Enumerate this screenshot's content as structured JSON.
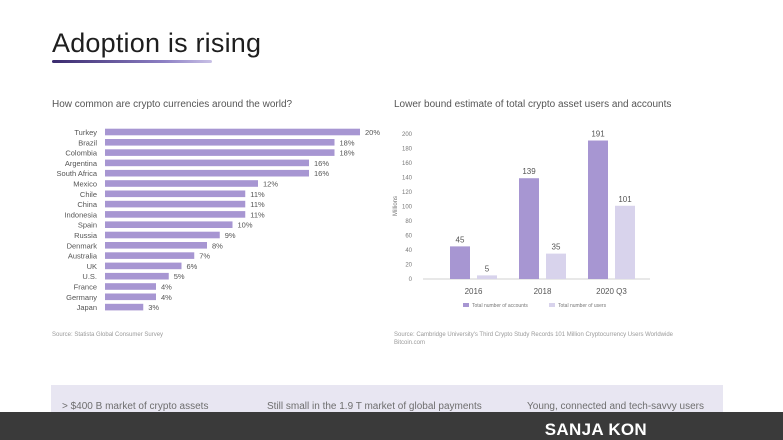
{
  "slide": {
    "title": "Adoption is rising",
    "left_chart_title": "How common are crypto currencies around the world?",
    "right_chart_title": "Lower bound estimate of total crypto asset users and accounts",
    "left_source": "Source: Statista Global Consumer Survey",
    "right_source_line1": "Source: Cambridge University's Third Crypto Study Records 101 Million Cryptocurrency Users Worldwide",
    "right_source_line2": "Bitcoin.com",
    "footer": [
      "> $400 B market of crypto assets",
      "Still small in the 1.9 T market of global payments",
      "Young, connected and tech-savvy users"
    ],
    "watermark": "SANJA KON",
    "colors": {
      "bar_dark": "#a796d2",
      "bar_light": "#d8d3ec",
      "footer_band": "#e8e6f2",
      "bottom_bar": "#3a3a3a"
    }
  },
  "chart_data": [
    {
      "type": "bar",
      "orientation": "horizontal",
      "title": "How common are crypto currencies around the world?",
      "categories": [
        "Turkey",
        "Brazil",
        "Colombia",
        "Argentina",
        "South Africa",
        "Mexico",
        "Chile",
        "China",
        "Indonesia",
        "Spain",
        "Russia",
        "Denmark",
        "Australia",
        "UK",
        "U.S.",
        "France",
        "Germany",
        "Japan"
      ],
      "values": [
        20,
        18,
        18,
        16,
        16,
        12,
        11,
        11,
        11,
        10,
        9,
        8,
        7,
        6,
        5,
        4,
        4,
        3
      ],
      "value_labels": [
        "20%",
        "18%",
        "18%",
        "16%",
        "16%",
        "12%",
        "11%",
        "11%",
        "11%",
        "10%",
        "9%",
        "8%",
        "7%",
        "6%",
        "5%",
        "4%",
        "4%",
        "3%"
      ],
      "xlim": [
        0,
        20
      ],
      "grid": false
    },
    {
      "type": "bar",
      "title": "Lower bound estimate of total crypto asset users and accounts",
      "categories": [
        "2016",
        "2018",
        "2020 Q3"
      ],
      "ylabel": "Millions",
      "ylim": [
        0,
        200
      ],
      "yticks": [
        "0",
        "20",
        "40",
        "60",
        "80",
        "100",
        "120",
        "140",
        "160",
        "180",
        "200"
      ],
      "series": [
        {
          "name": "Total number of accounts",
          "values": [
            45,
            139,
            191
          ]
        },
        {
          "name": "Total number of users",
          "values": [
            5,
            35,
            101
          ]
        }
      ],
      "legend": "bottom",
      "grid": false
    }
  ]
}
